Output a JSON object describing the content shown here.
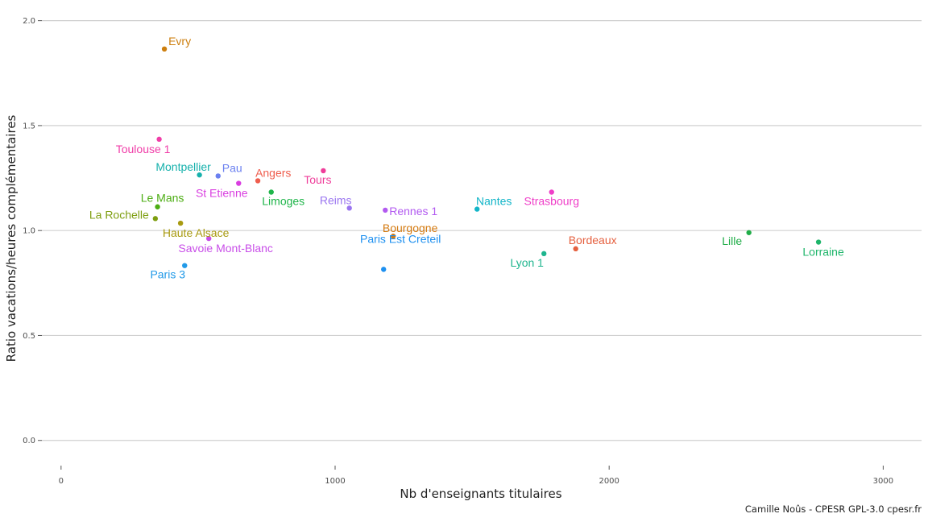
{
  "chart_data": {
    "type": "scatter",
    "title": "",
    "xlabel": "Nb d'enseignants titulaires",
    "ylabel": "Ratio vacations/heures complémentaires",
    "xlim": [
      -70,
      3140
    ],
    "ylim": [
      -0.12,
      2.06
    ],
    "x_ticks": [
      0,
      1000,
      2000,
      3000
    ],
    "x_tick_labels": [
      "0",
      "1000",
      "2000",
      "3000"
    ],
    "y_ticks": [
      0.0,
      0.5,
      1.0,
      1.5,
      2.0
    ],
    "y_tick_labels": [
      "0.0",
      "0.5",
      "1.0",
      "1.5",
      "2.0"
    ],
    "grid": "horizontal major lines",
    "legend": "none",
    "points": [
      {
        "label": "Evry",
        "x": 377,
        "y": 1.865,
        "color": "#cd7f0f",
        "anchor": "start",
        "dx": 5,
        "dy": -5
      },
      {
        "label": "Toulouse 1",
        "x": 358,
        "y": 1.435,
        "color": "#f03ea8",
        "anchor": "middle",
        "dx": -20,
        "dy": 17
      },
      {
        "label": "Montpellier",
        "x": 505,
        "y": 1.265,
        "color": "#16b1ac",
        "anchor": "middle",
        "dx": -20,
        "dy": -5
      },
      {
        "label": "Pau",
        "x": 573,
        "y": 1.26,
        "color": "#6b80f0",
        "anchor": "start",
        "dx": 5,
        "dy": -5
      },
      {
        "label": "St Etienne",
        "x": 648,
        "y": 1.225,
        "color": "#d93ee0",
        "anchor": "middle",
        "dx": -21,
        "dy": 17
      },
      {
        "label": "Angers",
        "x": 718,
        "y": 1.237,
        "color": "#ef5d4d",
        "anchor": "start",
        "dx": -3,
        "dy": -5
      },
      {
        "label": "Limoges",
        "x": 767,
        "y": 1.183,
        "color": "#1fb54a",
        "anchor": "middle",
        "dx": 15,
        "dy": 16
      },
      {
        "label": "Tours",
        "x": 957,
        "y": 1.285,
        "color": "#ef3d9a",
        "anchor": "middle",
        "dx": -7,
        "dy": 16
      },
      {
        "label": "Reims",
        "x": 1052,
        "y": 1.107,
        "color": "#9a75f0",
        "anchor": "middle",
        "dx": -17,
        "dy": -5
      },
      {
        "label": "Rennes 1",
        "x": 1183,
        "y": 1.097,
        "color": "#b25af0",
        "anchor": "start",
        "dx": 5,
        "dy": 6
      },
      {
        "label": "Bourgogne",
        "x": 1212,
        "y": 0.973,
        "color": "#d47a10",
        "anchor": "middle",
        "dx": 21,
        "dy": -5
      },
      {
        "label": "Paris Est Creteil",
        "x": 1177,
        "y": 0.815,
        "color": "#1e90f0",
        "anchor": "middle",
        "dx": 21,
        "dy": -33
      },
      {
        "label": "Nantes",
        "x": 1518,
        "y": 1.102,
        "color": "#12b5c8",
        "anchor": "middle",
        "dx": 21,
        "dy": -5
      },
      {
        "label": "Strasbourg",
        "x": 1790,
        "y": 1.183,
        "color": "#ef3ec8",
        "anchor": "middle",
        "dx": 0,
        "dy": 16
      },
      {
        "label": "Lyon 1",
        "x": 1762,
        "y": 0.89,
        "color": "#1eb58e",
        "anchor": "middle",
        "dx": -21,
        "dy": 16
      },
      {
        "label": "Bordeaux",
        "x": 1878,
        "y": 0.913,
        "color": "#e5603f",
        "anchor": "middle",
        "dx": 21,
        "dy": -6
      },
      {
        "label": "Lille",
        "x": 2510,
        "y": 0.99,
        "color": "#20ad48",
        "anchor": "middle",
        "dx": -21,
        "dy": 15
      },
      {
        "label": "Lorraine",
        "x": 2764,
        "y": 0.945,
        "color": "#1eb56a",
        "anchor": "middle",
        "dx": 6,
        "dy": 17
      },
      {
        "label": "Le Mans",
        "x": 352,
        "y": 1.113,
        "color": "#4cad13",
        "anchor": "middle",
        "dx": 6,
        "dy": -6
      },
      {
        "label": "La Rochelle",
        "x": 344,
        "y": 1.057,
        "color": "#7e9e10",
        "anchor": "middle",
        "dx": -45,
        "dy": 0
      },
      {
        "label": "Haute Alsace",
        "x": 436,
        "y": 1.035,
        "color": "#a89a10",
        "anchor": "middle",
        "dx": 19,
        "dy": 17
      },
      {
        "label": "Savoie Mont-Blanc",
        "x": 539,
        "y": 0.962,
        "color": "#c84ee8",
        "anchor": "middle",
        "dx": 21,
        "dy": 17
      },
      {
        "label": "Paris 3",
        "x": 451,
        "y": 0.833,
        "color": "#229ae8",
        "anchor": "middle",
        "dx": -21,
        "dy": 16
      }
    ]
  },
  "caption": "Camille Noûs - CPESR GPL-3.0 cpesr.fr"
}
